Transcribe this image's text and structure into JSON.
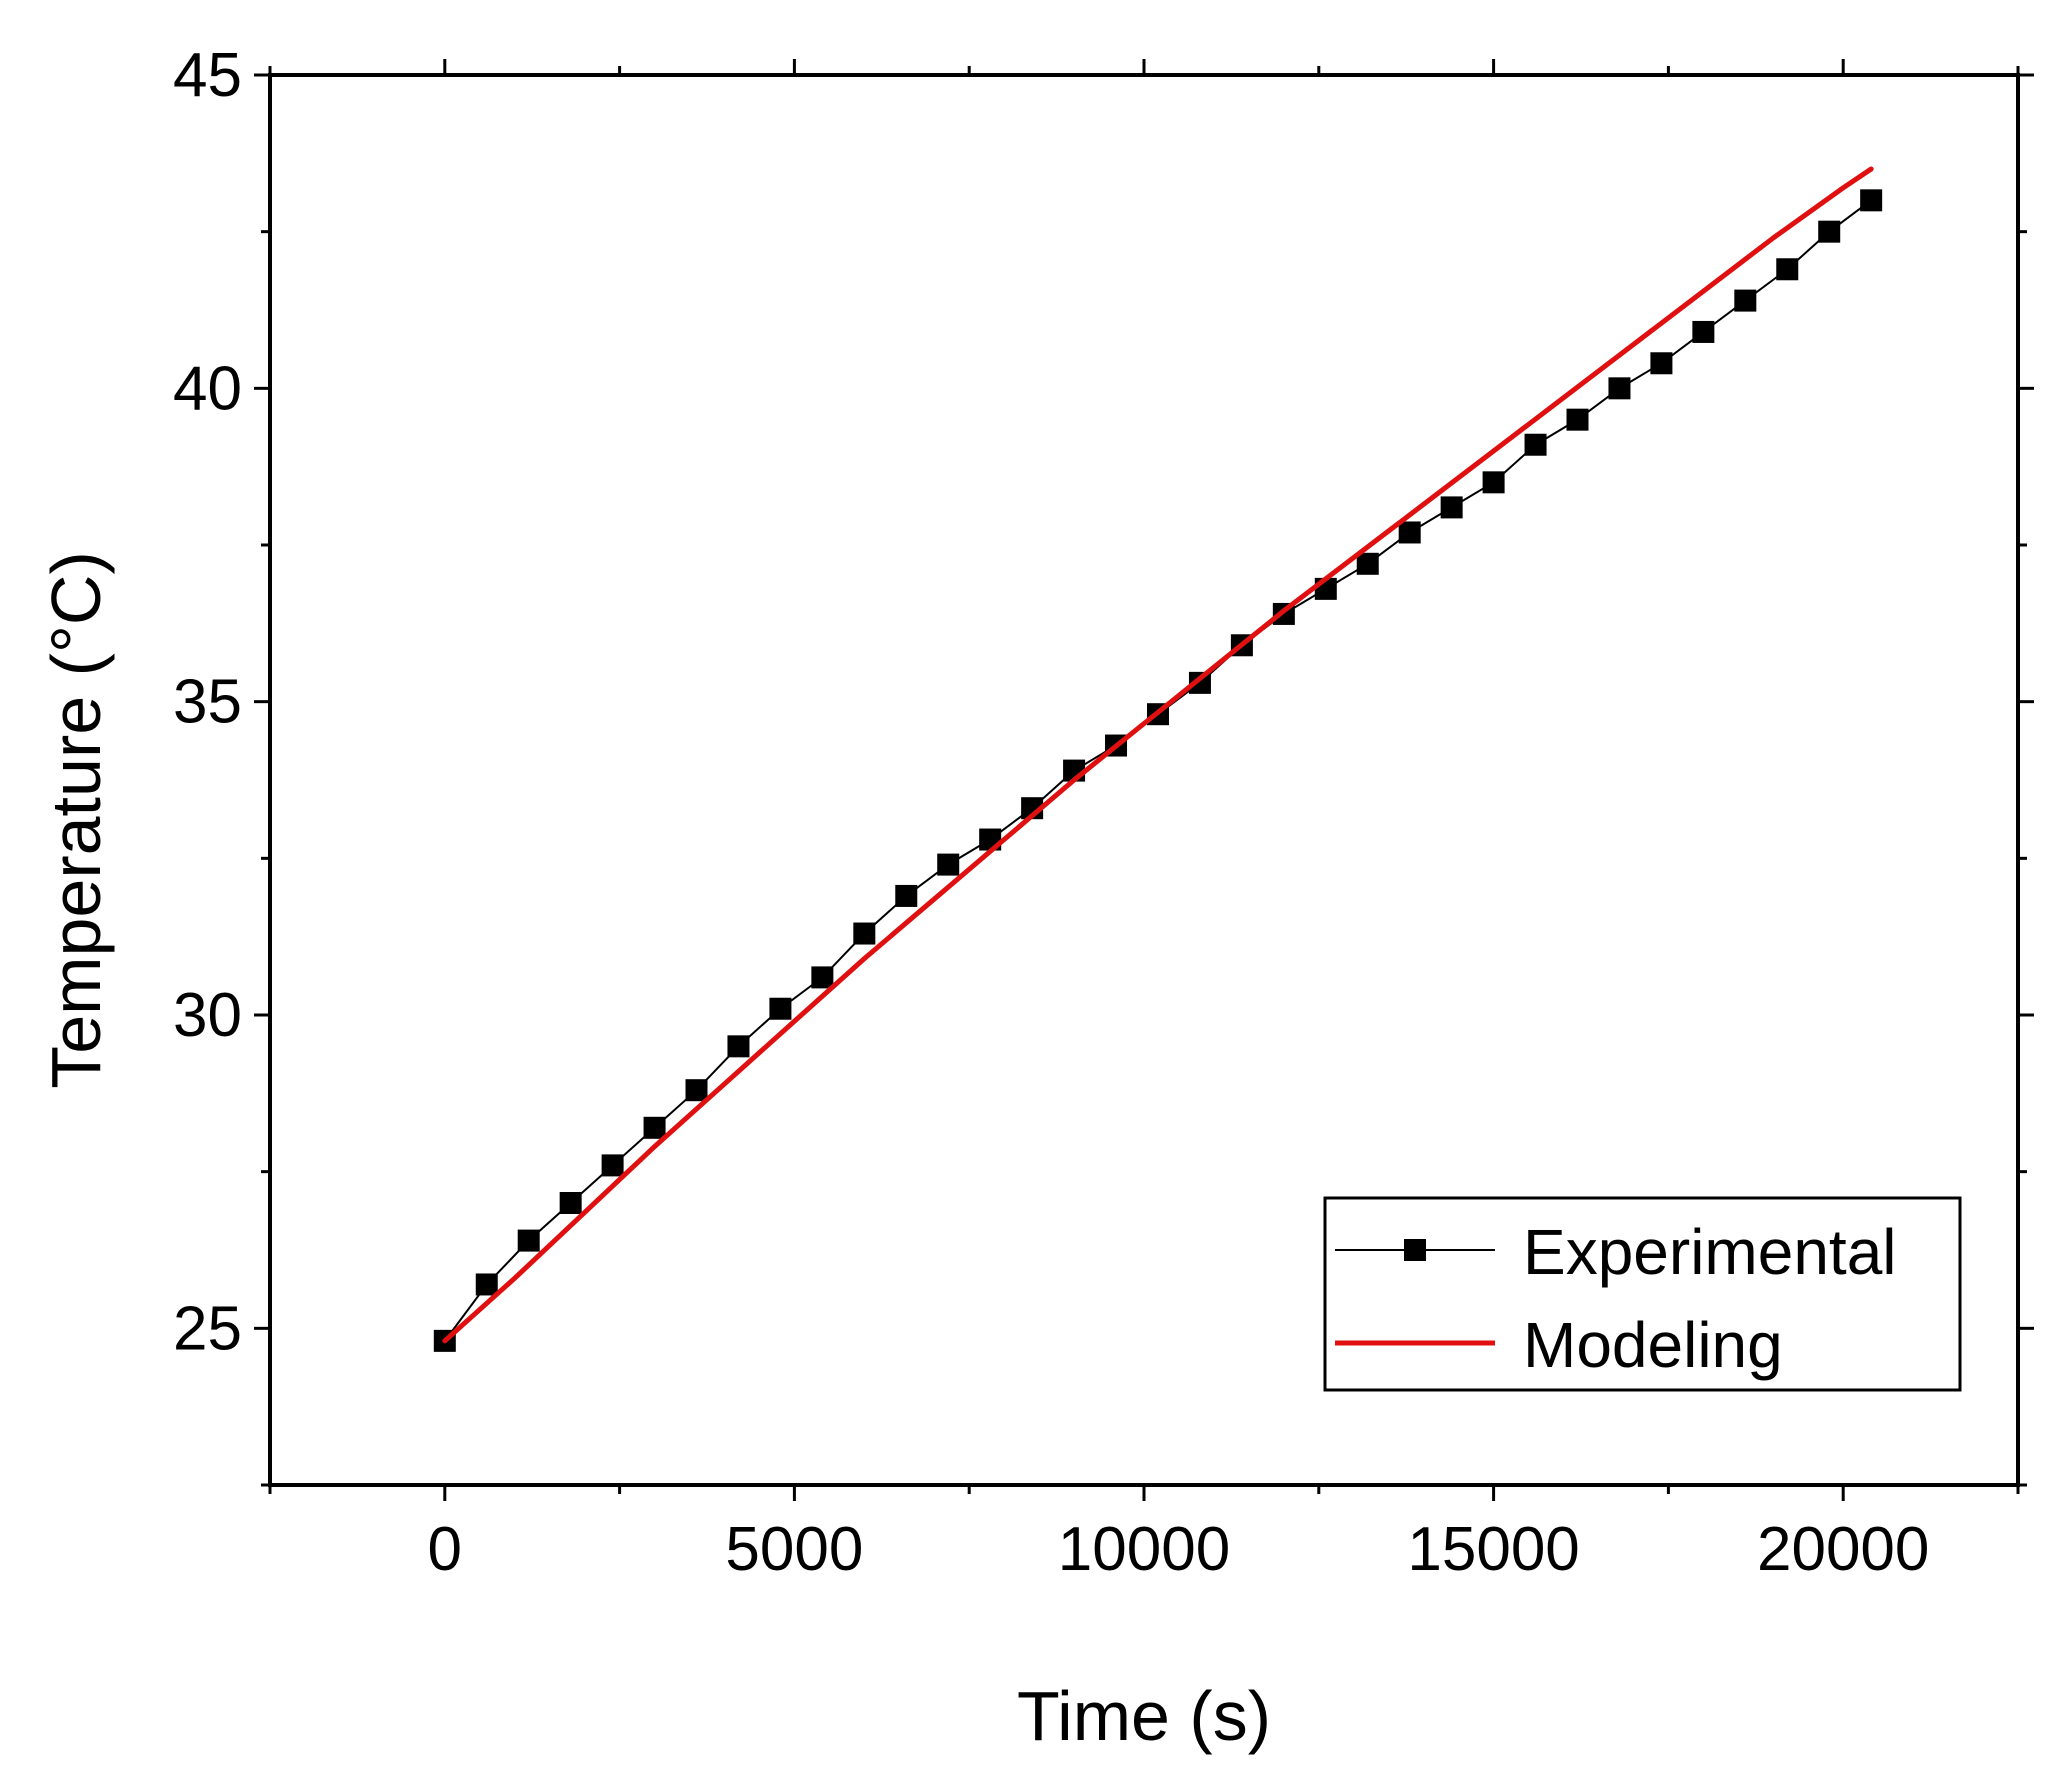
{
  "chart_data": {
    "type": "line",
    "title": "",
    "xlabel": "Time (s)",
    "ylabel": "Temperature (°C)",
    "xlim": [
      -2500,
      22500
    ],
    "ylim": [
      22.5,
      45
    ],
    "x_ticks": [
      0,
      5000,
      10000,
      15000,
      20000
    ],
    "y_ticks": [
      25,
      30,
      35,
      40,
      45
    ],
    "x_tick_labels": [
      "0",
      "5000",
      "10000",
      "15000",
      "20000"
    ],
    "y_tick_labels": [
      "25",
      "30",
      "35",
      "40",
      "45"
    ],
    "grid": false,
    "legend_position": "bottom-right",
    "series": [
      {
        "name": "Experimental",
        "style": "line-with-square-markers",
        "color": "#000000",
        "x": [
          0,
          600,
          1200,
          1800,
          2400,
          3000,
          3600,
          4200,
          4800,
          5400,
          6000,
          6600,
          7200,
          7800,
          8400,
          9000,
          9600,
          10200,
          10800,
          11400,
          12000,
          12600,
          13200,
          13800,
          14400,
          15000,
          15600,
          16200,
          16800,
          17400,
          18000,
          18600,
          19200,
          19800,
          20400
        ],
        "y": [
          24.8,
          25.7,
          26.4,
          27.0,
          27.6,
          28.2,
          28.8,
          29.5,
          30.1,
          30.6,
          31.3,
          31.9,
          32.4,
          32.8,
          33.3,
          33.9,
          34.3,
          34.8,
          35.3,
          35.9,
          36.4,
          36.8,
          37.2,
          37.7,
          38.1,
          38.5,
          39.1,
          39.5,
          40.0,
          40.4,
          40.9,
          41.4,
          41.9,
          42.5,
          43.0
        ]
      },
      {
        "name": "Modeling",
        "style": "line",
        "color": "#e01010",
        "x": [
          0,
          1000,
          2000,
          3000,
          4000,
          5000,
          6000,
          7000,
          8000,
          9000,
          10000,
          11000,
          12000,
          13000,
          14000,
          15000,
          16000,
          17000,
          18000,
          19000,
          20000,
          20400
        ],
        "y": [
          24.8,
          25.8,
          26.85,
          27.9,
          28.9,
          29.9,
          30.9,
          31.85,
          32.8,
          33.75,
          34.65,
          35.55,
          36.45,
          37.3,
          38.15,
          39.0,
          39.85,
          40.7,
          41.55,
          42.4,
          43.2,
          43.5
        ]
      }
    ]
  }
}
